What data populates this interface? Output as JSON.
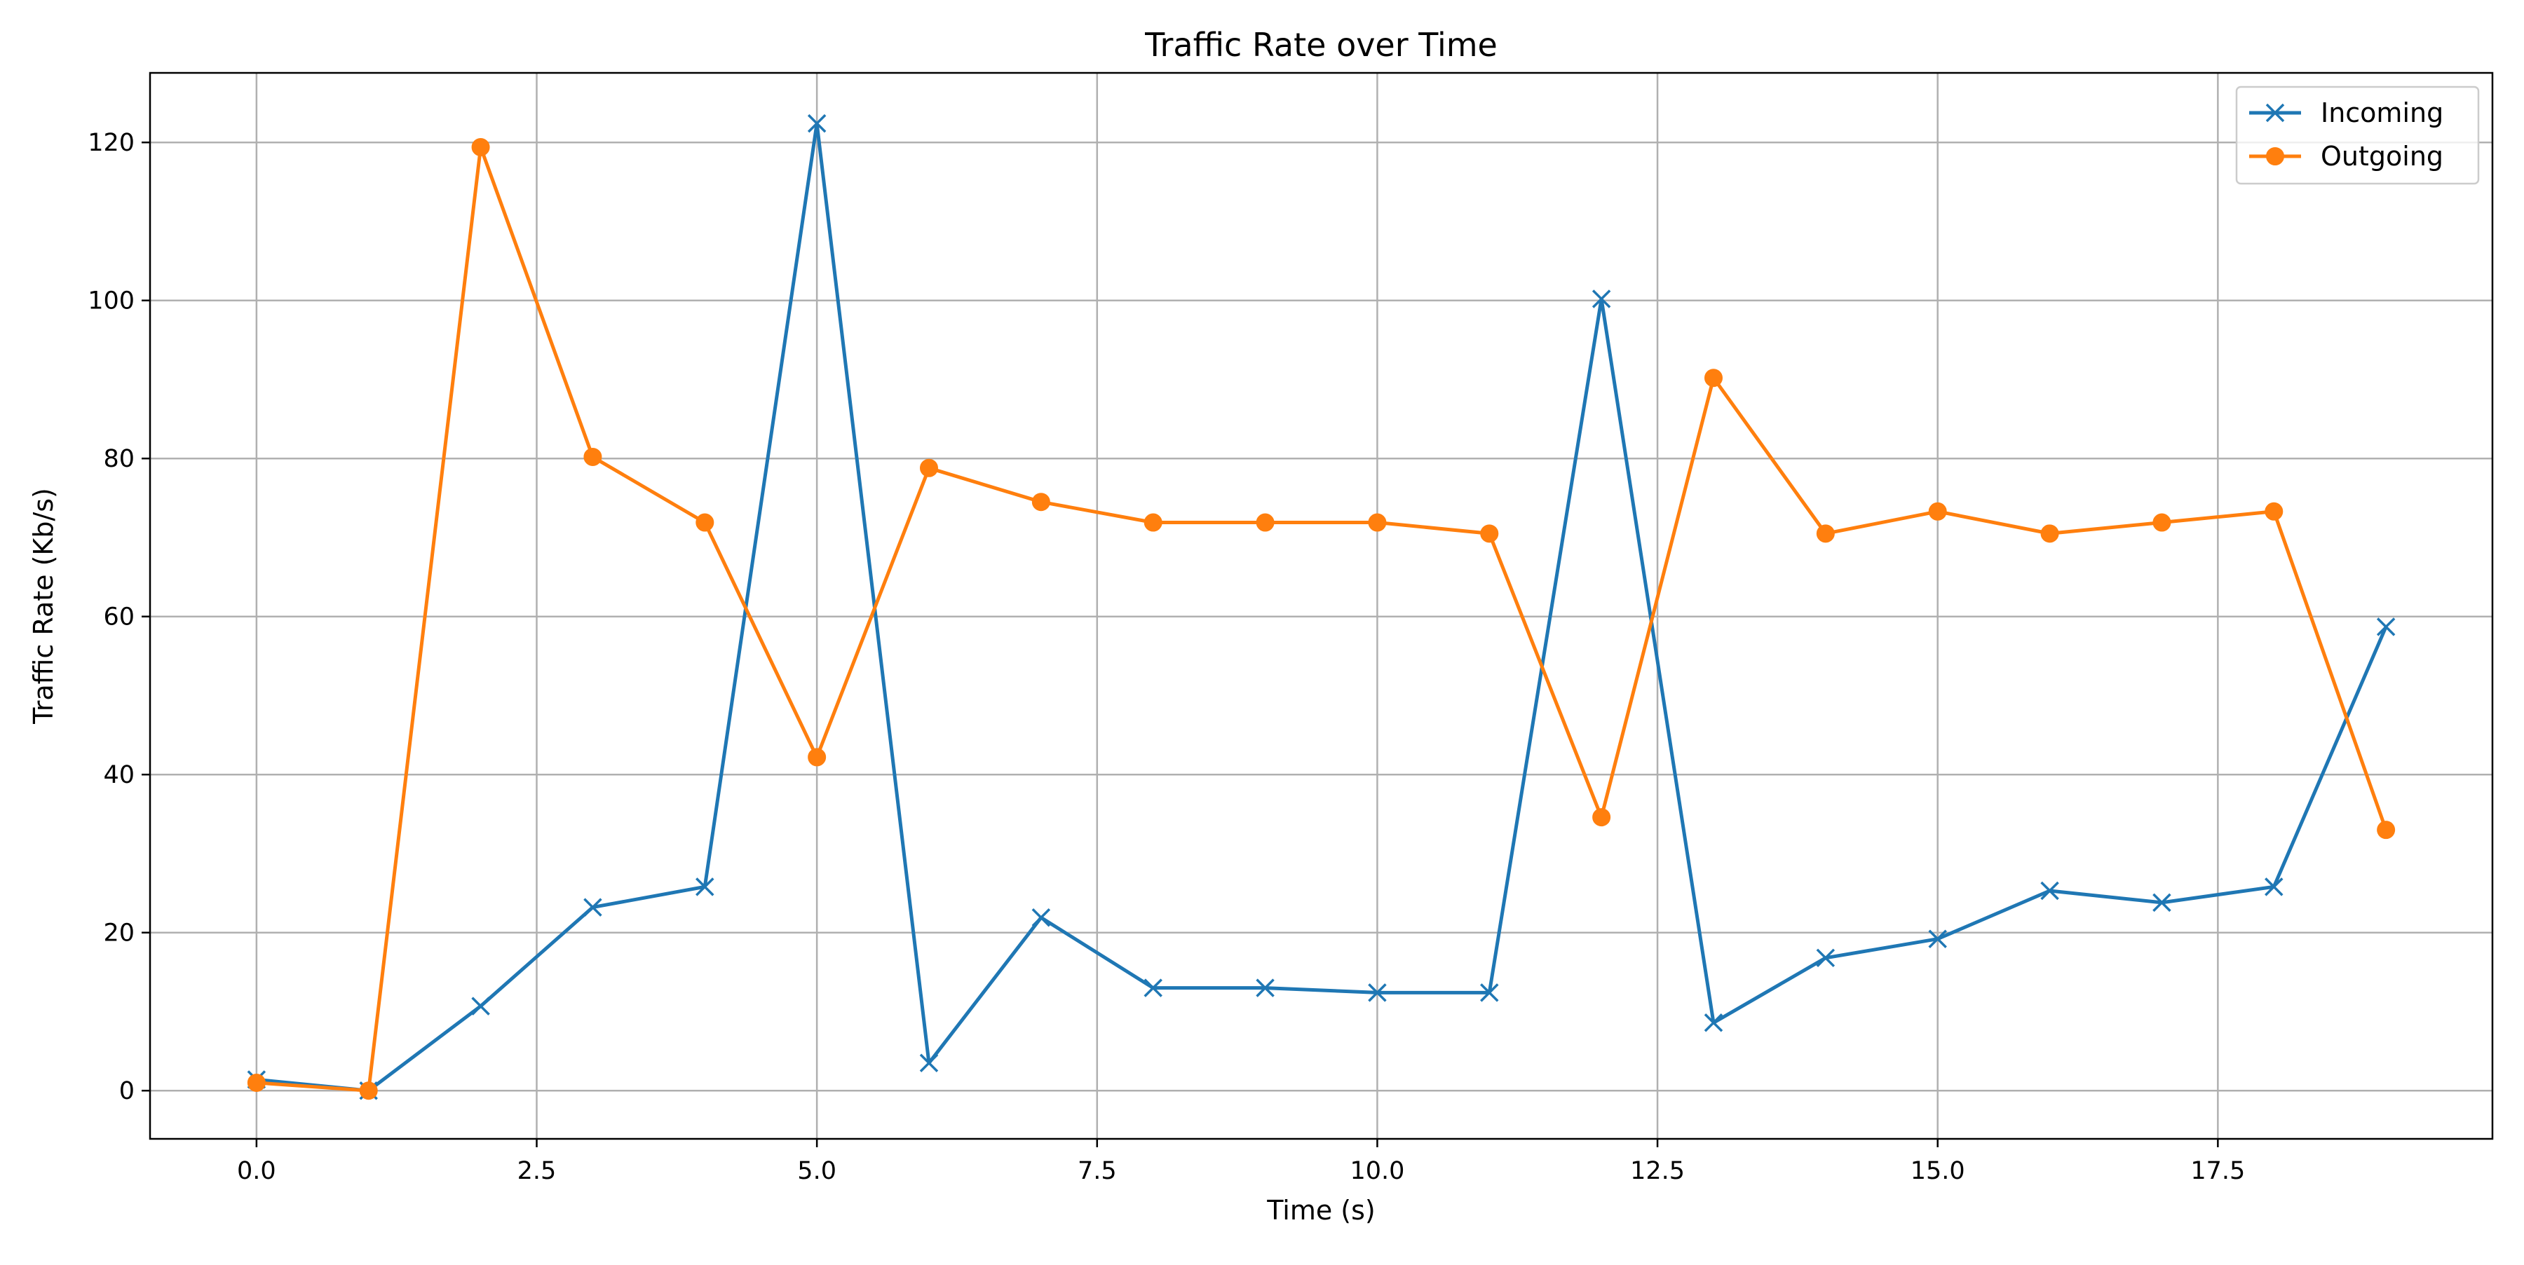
{
  "chart_data": {
    "type": "line",
    "title": "Traffic Rate over Time",
    "xlabel": "Time (s)",
    "ylabel": "Traffic Rate (Kb/s)",
    "x": [
      0,
      1,
      2,
      3,
      4,
      5,
      6,
      7,
      8,
      9,
      10,
      11,
      12,
      13,
      14,
      15,
      16,
      17,
      18,
      19
    ],
    "xlim": [
      -0.95,
      19.95
    ],
    "ylim": [
      -6.1,
      128.8
    ],
    "xticks": [
      0.0,
      2.5,
      5.0,
      7.5,
      10.0,
      12.5,
      15.0,
      17.5
    ],
    "xtick_labels": [
      "0.0",
      "2.5",
      "5.0",
      "7.5",
      "10.0",
      "12.5",
      "15.0",
      "17.5"
    ],
    "yticks": [
      0,
      20,
      40,
      60,
      80,
      100,
      120
    ],
    "ytick_labels": [
      "0",
      "20",
      "40",
      "60",
      "80",
      "100",
      "120"
    ],
    "grid": true,
    "legend_position": "top-right",
    "series": [
      {
        "name": "Incoming",
        "color": "#1f77b4",
        "marker": "x",
        "values": [
          1.4,
          0.0,
          10.7,
          23.2,
          25.8,
          122.4,
          3.5,
          21.9,
          13.0,
          13.0,
          12.4,
          12.4,
          100.2,
          8.6,
          16.8,
          19.2,
          25.3,
          23.8,
          25.8,
          58.7
        ]
      },
      {
        "name": "Outgoing",
        "color": "#ff7f0e",
        "marker": "o",
        "values": [
          1.0,
          0.0,
          119.4,
          80.2,
          71.9,
          42.2,
          78.8,
          74.5,
          71.9,
          71.9,
          71.9,
          70.5,
          34.6,
          90.2,
          70.5,
          73.3,
          70.5,
          71.9,
          73.3,
          33.0
        ]
      }
    ]
  }
}
